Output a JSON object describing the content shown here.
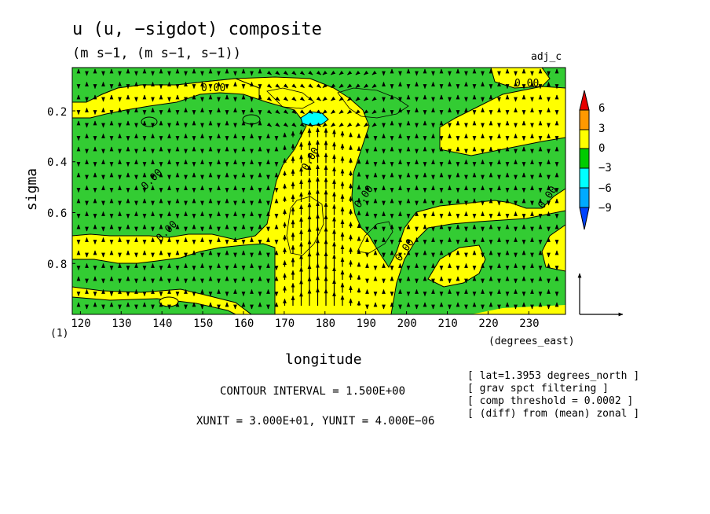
{
  "header": {
    "title": "u (u, −sigdot) composite",
    "units": "(m s−1, (m s−1, s−1))",
    "experiment": "adj_c"
  },
  "chart_data": {
    "type": "heatmap",
    "xlabel": "longitude",
    "ylabel": "sigma",
    "xunit_label": "(degrees_east)",
    "sigma_index_label": "(1)",
    "xlim": [
      118,
      239
    ],
    "ylim": [
      1.0,
      0.03
    ],
    "x_ticks": [
      120,
      130,
      140,
      150,
      160,
      170,
      180,
      190,
      200,
      210,
      220,
      230
    ],
    "y_ticks": [
      0.2,
      0.4,
      0.6,
      0.8
    ],
    "y_tick_labels": [
      "0.2",
      "0.4",
      "0.6",
      "0.8"
    ],
    "contour_labels": [
      "0.00",
      "0.00",
      "0.00",
      "0.00",
      "0.00",
      "0.00",
      "0.00",
      "0.00"
    ],
    "colorbar": {
      "levels": [
        "6",
        "3",
        "0",
        "−3",
        "−6",
        "−9"
      ],
      "colors": {
        "gt6": "#e60000",
        "3to6": "#ff9900",
        "0to3": "#ffff00",
        "m3to0": "#00cc00",
        "m6tom3": "#00ffff",
        "m9tom6": "#00aaff",
        "ltm9": "#0044ff"
      }
    },
    "fields": [
      {
        "name": "positive",
        "color": "#ffff00"
      },
      {
        "name": "negative",
        "color": "#33cc33"
      },
      {
        "name": "min_blob",
        "color": "#00ffff"
      }
    ]
  },
  "footer": {
    "contour_interval": "CONTOUR INTERVAL = 1.500E+00",
    "vector_units": "XUNIT = 3.000E+01, YUNIT = 4.000E−06",
    "notes": [
      "[ lat=1.3953 degrees_north ]",
      "[ grav spct filtering ]",
      "[ comp threshold = 0.0002 ]",
      "[ (diff) from (mean) zonal ]"
    ]
  }
}
